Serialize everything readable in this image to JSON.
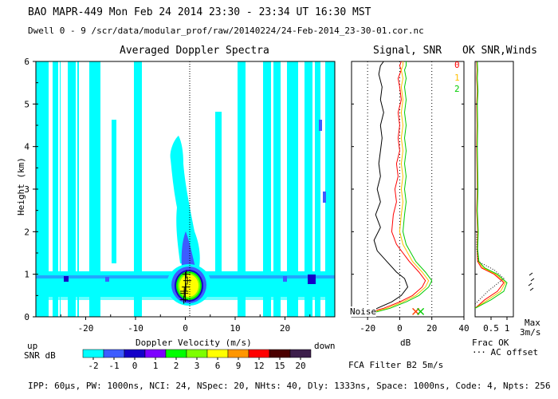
{
  "header": {
    "line1": "BAO  MAPR-449  Mon Feb 24 2014 23:30 - 23:34 UT 16:30 MST",
    "line2": "Dwell  0 - 9   /scr/data/modular_prof/raw/20140224/24-Feb-2014_23-30-01.cor.nc"
  },
  "footer": "IPP: 60μs, PW: 1000ns, NCI: 24, NSpec: 20, NHts: 40, Dly: 1333ns, Space: 1000ns, Code: 4, Npts: 256",
  "fca_filter": "FCA Filter B2  5m/s",
  "colorbar": {
    "title": "SNR dB",
    "labels": [
      "-2",
      "-1",
      "0",
      "1",
      "2",
      "3",
      "6",
      "9",
      "12",
      "15",
      "20"
    ],
    "colors": [
      "#00ffff",
      "#3d5cff",
      "#1400c8",
      "#7d00ff",
      "#00ff00",
      "#7dff00",
      "#ffff00",
      "#ff9600",
      "#ff0000",
      "#4b0000",
      "#3c1e4b"
    ]
  },
  "chart_data": [
    {
      "type": "heatmap",
      "title": "Averaged Doppler Spectra",
      "xlabel": "Doppler Velocity (m/s)",
      "ylabel": "Height (km)",
      "xlim": [
        -30,
        30
      ],
      "ylim": [
        0,
        6
      ],
      "xticks": [
        -20,
        -10,
        0,
        10,
        20
      ],
      "yticks": [
        0,
        1,
        2,
        3,
        4,
        5,
        6
      ],
      "left_label": "up",
      "right_label": "down",
      "peak_markers": [
        {
          "v": -0.3,
          "h": 0.4
        },
        {
          "v": -0.2,
          "h": 0.55
        },
        {
          "v": 0.1,
          "h": 0.7
        },
        {
          "v": 0.4,
          "h": 0.85
        },
        {
          "v": 0.2,
          "h": 1.0
        },
        {
          "v": -0.2,
          "h": 0.6
        }
      ]
    },
    {
      "type": "line",
      "title": "Signal, SNR",
      "xlabel": "dB",
      "xlim": [
        -30,
        40
      ],
      "ylim": [
        0,
        6
      ],
      "xticks": [
        -20,
        0,
        20,
        40
      ],
      "reference_lines_x": [
        -20,
        0,
        20
      ],
      "noise_label": "Noise",
      "series": [
        {
          "name": "Signal",
          "color": "#000000",
          "x": [
            -22,
            -14,
            -5,
            1,
            5,
            3,
            -2,
            -8,
            -14,
            -16,
            -12,
            -15,
            -12,
            -14,
            -12,
            -13,
            -12,
            -11,
            -12,
            -10,
            -12,
            -11,
            -13,
            -12,
            -10
          ],
          "y": [
            0.1,
            0.2,
            0.35,
            0.5,
            0.7,
            0.9,
            1.05,
            1.3,
            1.55,
            1.8,
            2.1,
            2.4,
            2.7,
            3.0,
            3.3,
            3.6,
            3.9,
            4.2,
            4.5,
            4.8,
            5.1,
            5.4,
            5.7,
            5.9,
            6.0
          ]
        },
        {
          "name": "SNR 0",
          "color": "#ff0000",
          "x": [
            -20,
            -10,
            0,
            8,
            14,
            16,
            12,
            6,
            -2,
            -5,
            -4,
            -2,
            -3,
            -1,
            -2,
            0,
            -1,
            0,
            -1,
            1,
            0,
            -1,
            1,
            0,
            1
          ],
          "y": [
            0.1,
            0.2,
            0.35,
            0.5,
            0.7,
            0.85,
            1.05,
            1.3,
            1.7,
            2.0,
            2.4,
            2.7,
            3.0,
            3.3,
            3.6,
            3.9,
            4.2,
            4.5,
            4.8,
            5.1,
            5.4,
            5.6,
            5.8,
            5.9,
            6.0
          ]
        },
        {
          "name": "SNR 1",
          "color": "#ffbf00",
          "x": [
            -18,
            -8,
            2,
            10,
            16,
            18,
            14,
            8,
            2,
            0,
            1,
            2,
            1,
            2,
            1,
            2,
            1,
            2,
            1,
            2,
            1,
            2,
            1,
            2,
            2
          ],
          "y": [
            0.1,
            0.2,
            0.35,
            0.5,
            0.7,
            0.85,
            1.05,
            1.3,
            1.7,
            2.0,
            2.4,
            2.7,
            3.0,
            3.3,
            3.6,
            3.9,
            4.2,
            4.5,
            4.8,
            5.1,
            5.4,
            5.6,
            5.8,
            5.9,
            6.0
          ]
        },
        {
          "name": "SNR 2",
          "color": "#00cc00",
          "x": [
            -16,
            -6,
            4,
            12,
            18,
            20,
            16,
            10,
            4,
            2,
            3,
            4,
            3,
            4,
            3,
            4,
            3,
            4,
            3,
            4,
            3,
            4,
            3,
            4,
            4
          ],
          "y": [
            0.1,
            0.2,
            0.35,
            0.5,
            0.7,
            0.85,
            1.05,
            1.3,
            1.7,
            2.0,
            2.4,
            2.7,
            3.0,
            3.3,
            3.6,
            3.9,
            4.2,
            4.5,
            4.8,
            5.1,
            5.4,
            5.6,
            5.8,
            5.9,
            6.0
          ]
        }
      ],
      "markers": [
        {
          "name": "noise-x-marker",
          "x": 10,
          "y": 0.05,
          "color": "#ff4000"
        },
        {
          "name": "noise-x-marker",
          "x": 13,
          "y": 0.05,
          "color": "#00cc00"
        }
      ]
    },
    {
      "type": "line",
      "title": "OK SNR,Winds",
      "xlabel": "Frac OK",
      "xlim": [
        0,
        1.2
      ],
      "ylim": [
        0,
        6
      ],
      "xticks": [
        0.5,
        1
      ],
      "tick_labels": [
        "0.5",
        "1"
      ],
      "legend": [
        "0",
        "1",
        "2"
      ],
      "legend_colors": [
        "#ff0000",
        "#ffbf00",
        "#00cc00"
      ],
      "ac_offset_label": "AC offset",
      "max_label": "Max",
      "max_value": "3m/s",
      "series": [
        {
          "name": "OK 0",
          "color": "#ff0000",
          "x": [
            0.0,
            0.3,
            0.7,
            0.9,
            0.6,
            0.2,
            0.08,
            0.06,
            0.08,
            0.05,
            0.07,
            0.06,
            0.05,
            0.06,
            0.05,
            0.07,
            0.05,
            0.06,
            0.05
          ],
          "y": [
            0.2,
            0.4,
            0.6,
            0.8,
            1.0,
            1.15,
            1.3,
            1.6,
            2.0,
            2.5,
            3.0,
            3.5,
            4.0,
            4.5,
            5.0,
            5.3,
            5.6,
            5.8,
            6.0
          ]
        },
        {
          "name": "OK 1",
          "color": "#ffbf00",
          "x": [
            0.0,
            0.4,
            0.8,
            0.95,
            0.65,
            0.25,
            0.1,
            0.07,
            0.09,
            0.06,
            0.08,
            0.07,
            0.06,
            0.07,
            0.06,
            0.08,
            0.06,
            0.07,
            0.06
          ],
          "y": [
            0.2,
            0.4,
            0.6,
            0.8,
            1.0,
            1.15,
            1.3,
            1.6,
            2.0,
            2.5,
            3.0,
            3.5,
            4.0,
            4.5,
            5.0,
            5.3,
            5.6,
            5.8,
            6.0
          ]
        },
        {
          "name": "OK 2",
          "color": "#00cc00",
          "x": [
            0.0,
            0.5,
            0.9,
            1.0,
            0.7,
            0.3,
            0.12,
            0.08,
            0.1,
            0.07,
            0.09,
            0.08,
            0.07,
            0.08,
            0.07,
            0.09,
            0.07,
            0.08,
            0.07
          ],
          "y": [
            0.2,
            0.4,
            0.6,
            0.8,
            1.0,
            1.15,
            1.3,
            1.6,
            2.0,
            2.5,
            3.0,
            3.5,
            4.0,
            4.5,
            5.0,
            5.3,
            5.6,
            5.8,
            6.0
          ]
        },
        {
          "name": "AC offset",
          "color": "#000000",
          "dotted": true,
          "x": [
            0.0,
            0.4,
            0.9,
            0.6,
            0.1,
            0.05,
            0.05
          ],
          "y": [
            0.3,
            0.6,
            0.9,
            1.1,
            1.3,
            1.6,
            2.0
          ]
        }
      ]
    }
  ]
}
